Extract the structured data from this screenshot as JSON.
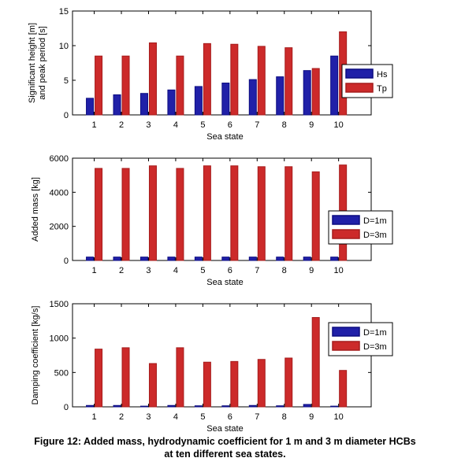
{
  "chart_data": [
    {
      "type": "bar",
      "categories": [
        "1",
        "2",
        "3",
        "4",
        "5",
        "6",
        "7",
        "8",
        "9",
        "10"
      ],
      "xlabel": "Sea state",
      "ylabel": [
        "Significant height [m]",
        "and peak period [s]"
      ],
      "ylim": [
        0,
        15
      ],
      "yticks": [
        0,
        5,
        10,
        15
      ],
      "grid": false,
      "legend": "right",
      "series": [
        {
          "name": "Hs",
          "color": "#0c0c80",
          "values": [
            2.4,
            2.9,
            3.1,
            3.6,
            4.1,
            4.6,
            5.1,
            5.5,
            6.4,
            8.5
          ]
        },
        {
          "name": "Tp",
          "color": "#a51c1c",
          "values": [
            8.5,
            8.5,
            10.4,
            8.5,
            10.3,
            10.2,
            9.9,
            9.7,
            6.7,
            12.0
          ]
        }
      ]
    },
    {
      "type": "bar",
      "categories": [
        "1",
        "2",
        "3",
        "4",
        "5",
        "6",
        "7",
        "8",
        "9",
        "10"
      ],
      "xlabel": "Sea state",
      "ylabel": [
        "Added mass [kg]"
      ],
      "ylim": [
        0,
        6000
      ],
      "yticks": [
        0,
        2000,
        4000,
        6000
      ],
      "grid": false,
      "legend": "right",
      "series": [
        {
          "name": "D=1m",
          "color": "#0c0c80",
          "values": [
            200,
            200,
            200,
            200,
            200,
            200,
            200,
            200,
            200,
            200
          ]
        },
        {
          "name": "D=3m",
          "color": "#a51c1c",
          "values": [
            5400,
            5400,
            5550,
            5400,
            5550,
            5550,
            5500,
            5500,
            5200,
            5600
          ]
        }
      ]
    },
    {
      "type": "bar",
      "categories": [
        "1",
        "2",
        "3",
        "4",
        "5",
        "6",
        "7",
        "8",
        "9",
        "10"
      ],
      "xlabel": "Sea state",
      "ylabel": [
        "Damping coefficient  [kg/s]"
      ],
      "ylim": [
        0,
        1500
      ],
      "yticks": [
        0,
        500,
        1000,
        1500
      ],
      "grid": false,
      "legend": "right",
      "series": [
        {
          "name": "D=1m",
          "color": "#0c0c80",
          "values": [
            20,
            20,
            10,
            20,
            15,
            15,
            20,
            15,
            35,
            10
          ]
        },
        {
          "name": "D=3m",
          "color": "#a51c1c",
          "values": [
            840,
            860,
            630,
            860,
            650,
            660,
            690,
            710,
            1300,
            530
          ]
        }
      ]
    }
  ],
  "caption": {
    "line1": "Figure 12: Added mass, hydrodynamic coefficient for 1 m and 3 m diameter HCBs",
    "line2": "at ten different sea states."
  }
}
